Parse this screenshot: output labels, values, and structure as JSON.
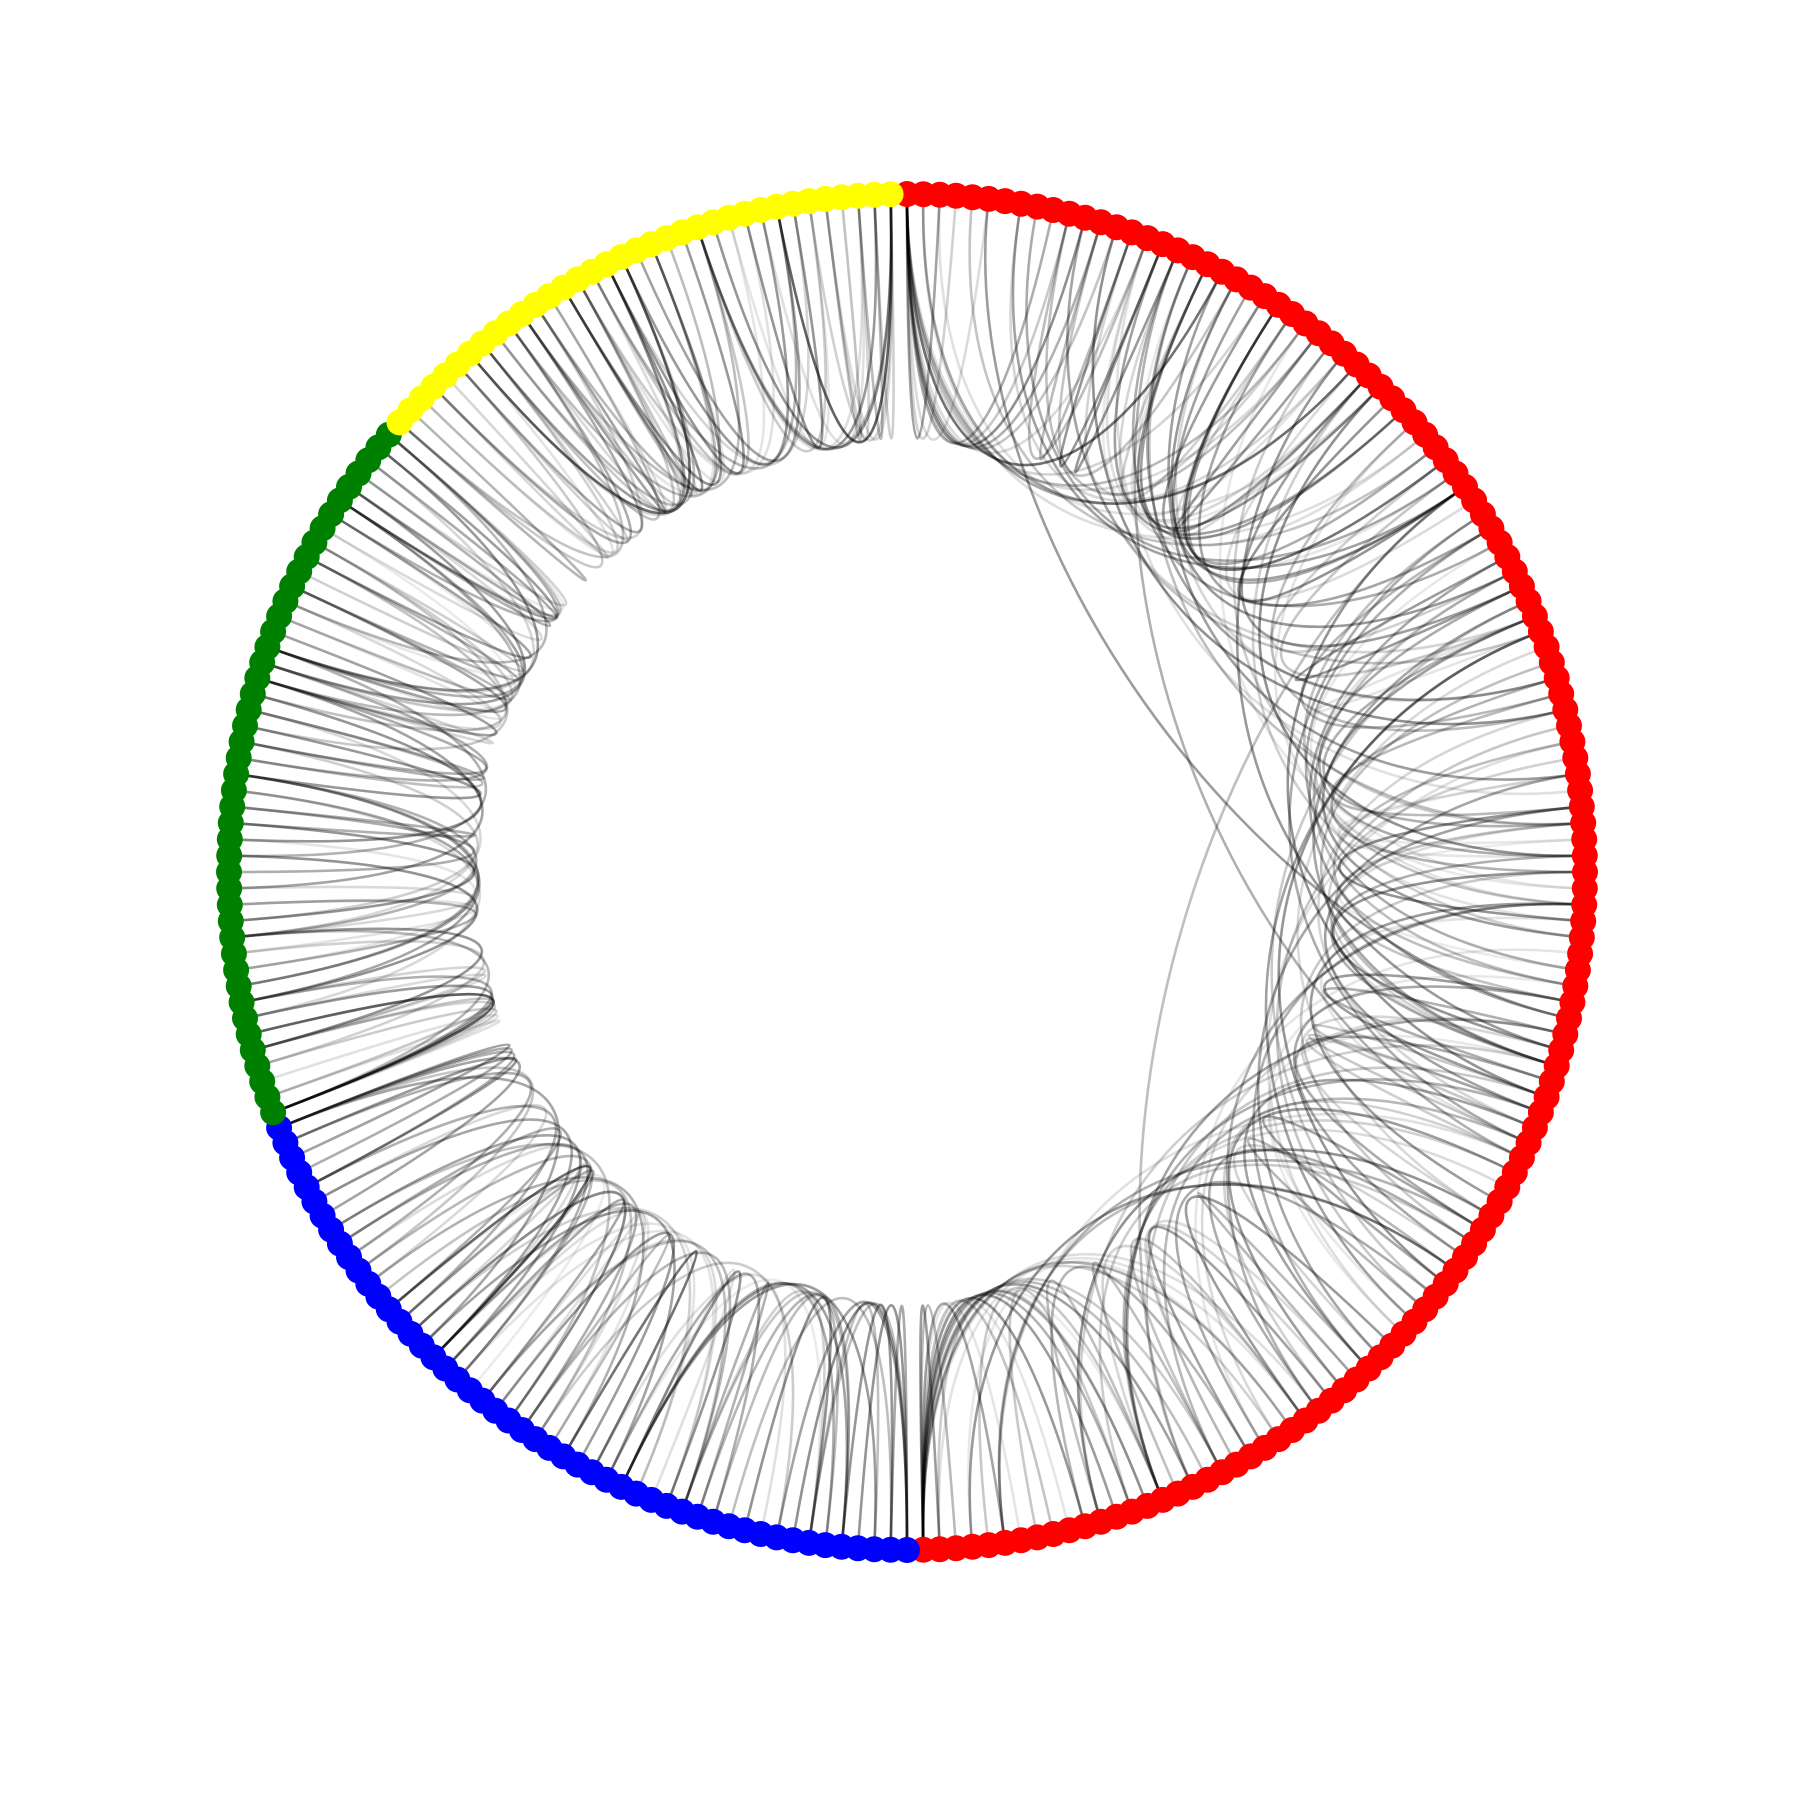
{
  "diagram": {
    "type": "circular-chord-network",
    "background": "#ffffff",
    "edge_color": "#000000",
    "groups": [
      {
        "color": "#ff0000",
        "node_count": 130
      },
      {
        "color": "#0000ff",
        "node_count": 50
      },
      {
        "color": "#008000",
        "node_count": 45
      },
      {
        "color": "#ffff00",
        "node_count": 35
      }
    ]
  }
}
